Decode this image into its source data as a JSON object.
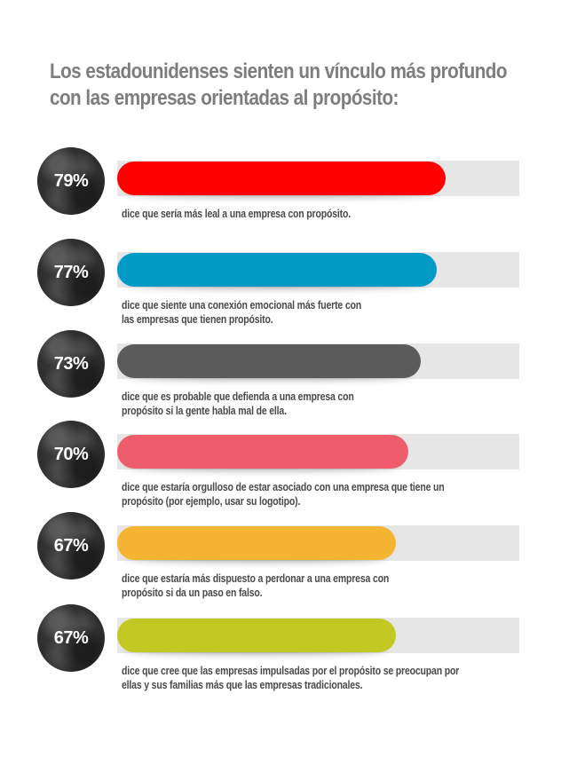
{
  "title": {
    "line1": "Los estadounidenses sienten un vínculo más profundo",
    "line2": "con las empresas orientadas al propósito:"
  },
  "track_color": "#e6e6e6",
  "chart_data": {
    "type": "bar",
    "orientation": "horizontal",
    "title": "Los estadounidenses sienten un vínculo más profundo con las empresas orientadas al propósito:",
    "xlim": [
      0,
      100
    ],
    "unit": "%",
    "items": [
      {
        "value": 79,
        "label": "79%",
        "color": "#ff0000",
        "caption": [
          "dice que sería más leal a una empresa con propósito."
        ]
      },
      {
        "value": 77,
        "label": "77%",
        "color": "#009ac7",
        "caption": [
          "dice que siente una conexión emocional más fuerte con",
          "las empresas que tienen propósito."
        ]
      },
      {
        "value": 73,
        "label": "73%",
        "color": "#5b5b5b",
        "caption": [
          "dice que es probable que defienda a una empresa con",
          "propósito si la gente habla mal de ella."
        ]
      },
      {
        "value": 70,
        "label": "70%",
        "color": "#ef5d6d",
        "caption": [
          "dice que estaría orgulloso de estar asociado con una empresa que tiene un",
          "propósito (por ejemplo, usar su logotipo)."
        ]
      },
      {
        "value": 67,
        "label": "67%",
        "color": "#f5b533",
        "caption": [
          "dice que estaría más dispuesto a perdonar a una empresa con",
          "propósito si da un paso en falso."
        ]
      },
      {
        "value": 67,
        "label": "67%",
        "color": "#c3c922",
        "caption": [
          "dice que cree que las empresas impulsadas por el propósito se preocupan por",
          "ellas y sus familias más que las empresas tradicionales."
        ]
      }
    ]
  }
}
